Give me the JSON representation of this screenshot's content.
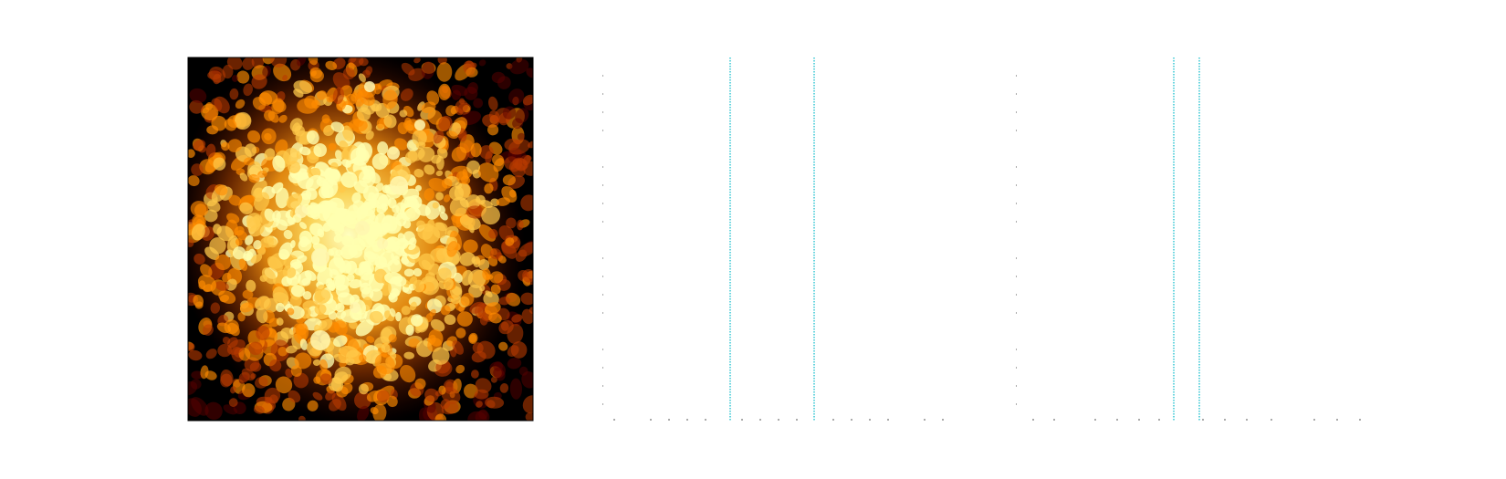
{
  "chart_data": [
    {
      "type": "heatmap",
      "title": "",
      "xlabel": "",
      "ylabel": "",
      "colormap": "afmhot",
      "colors": [
        "#000000",
        "#5a0000",
        "#b83a00",
        "#ff8c00",
        "#ffc94a",
        "#ffffb0"
      ],
      "grid": false,
      "legend": "none",
      "frame": true
    },
    {
      "type": "scatter",
      "title": "",
      "xlabel": "",
      "ylabel": "",
      "axes_visible": false,
      "grid": false,
      "reference_line_color": "#00b8c8",
      "reference_line_count": 2,
      "minor_tick_color": "#555555",
      "series": []
    },
    {
      "type": "scatter",
      "title": "",
      "xlabel": "",
      "ylabel": "",
      "axes_visible": false,
      "grid": false,
      "reference_line_color": "#00b8c8",
      "reference_line_count": 2,
      "minor_tick_color": "#555555",
      "series": []
    }
  ]
}
